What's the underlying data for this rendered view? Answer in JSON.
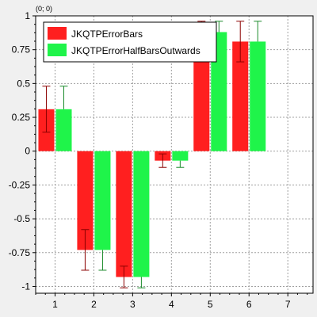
{
  "chart_data": {
    "type": "bar",
    "corner_label": "(0; 0)",
    "x": [
      1,
      2,
      3,
      4,
      5,
      6,
      7
    ],
    "xlim": [
      0.5,
      7.65
    ],
    "ylim": [
      -1.05,
      1.0
    ],
    "xticks": [
      1,
      2,
      3,
      4,
      5,
      6,
      7
    ],
    "yticks": [
      {
        "value": 1,
        "label": "1"
      },
      {
        "value": 0.75,
        "label": "0.75"
      },
      {
        "value": 0.5,
        "label": "0.5"
      },
      {
        "value": 0.25,
        "label": "0.25"
      },
      {
        "value": 0,
        "label": "0"
      },
      {
        "value": -0.25,
        "label": "-0.25"
      },
      {
        "value": -0.5,
        "label": "-0.5"
      },
      {
        "value": -0.75,
        "label": "-0.75"
      },
      {
        "value": -1,
        "label": "-1"
      }
    ],
    "grid": true,
    "legend_position": "top-left",
    "series": [
      {
        "name": "JKQTPErrorBars",
        "color": "#ff1f1f",
        "error_color": "#8b0000",
        "error_style": "full",
        "values": [
          0.31,
          -0.73,
          -0.93,
          -0.07,
          0.88,
          0.81,
          null
        ],
        "errors": [
          0.17,
          0.15,
          0.08,
          0.05,
          0.08,
          0.15,
          null
        ]
      },
      {
        "name": "JKQTPErrorHalfBarsOutwards",
        "color": "#1ff44a",
        "error_color": "#1a8a2a",
        "error_style": "half-outwards",
        "values": [
          0.31,
          -0.73,
          -0.93,
          -0.07,
          0.88,
          0.81,
          null
        ],
        "errors": [
          0.17,
          0.15,
          0.08,
          0.05,
          0.08,
          0.15,
          null
        ]
      }
    ]
  }
}
